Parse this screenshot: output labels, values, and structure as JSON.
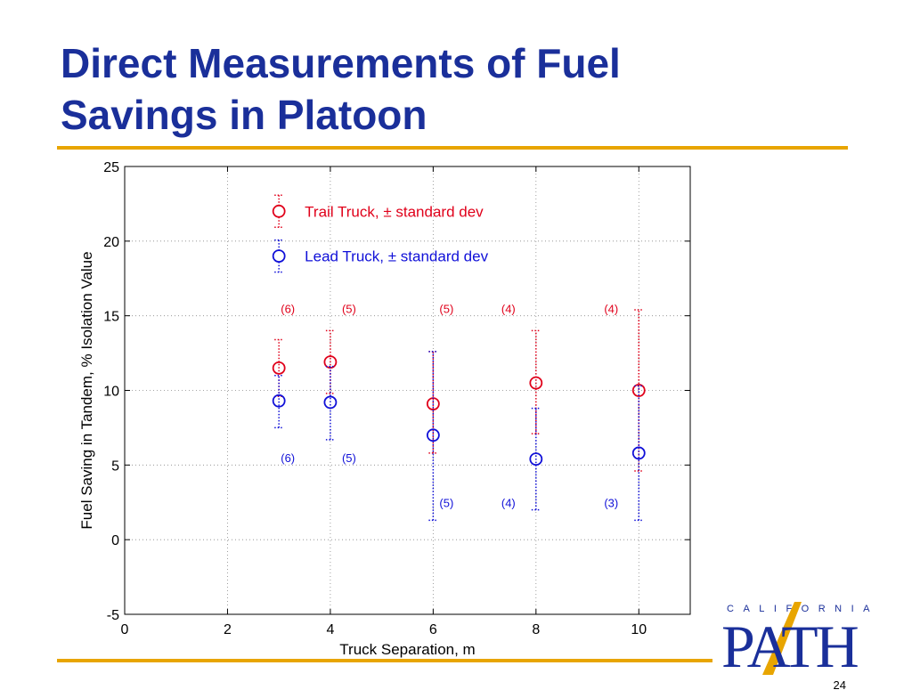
{
  "slide": {
    "title_line1": "Direct Measurements of Fuel",
    "title_line2": "Savings in Platoon",
    "page_number": "24"
  },
  "logo": {
    "top_text": "CALIFORNIA",
    "main_text": "PATH"
  },
  "colors": {
    "title": "#1a2f9a",
    "rule": "#e8a500",
    "trail": "#e0001a",
    "lead": "#1010d8"
  },
  "chart_data": {
    "type": "scatter",
    "xlabel": "Truck Separation, m",
    "ylabel": "Fuel Saving in Tandem, % Isolation Value",
    "xlim": [
      0,
      11
    ],
    "ylim": [
      -5,
      25
    ],
    "xticks": [
      0,
      2,
      4,
      6,
      8,
      10
    ],
    "yticks": [
      -5,
      0,
      5,
      10,
      15,
      20,
      25
    ],
    "grid": true,
    "legend_position": "upper-left inside",
    "series": [
      {
        "name": "Trail Truck, ± standard dev",
        "color": "#e0001a",
        "x": [
          3,
          4,
          6,
          8,
          10
        ],
        "y": [
          11.5,
          11.9,
          9.1,
          10.5,
          10.0
        ],
        "err_low": [
          9.6,
          9.8,
          5.8,
          7.1,
          4.6
        ],
        "err_high": [
          13.4,
          14.0,
          12.6,
          14.0,
          15.4
        ],
        "counts": [
          "(6)",
          "(5)",
          "(5)",
          "(4)",
          "(4)"
        ],
        "count_label_y": 15.5
      },
      {
        "name": "Lead Truck, ± standard dev",
        "color": "#1010d8",
        "x": [
          3,
          4,
          6,
          8,
          10
        ],
        "y": [
          9.3,
          9.2,
          7.0,
          5.4,
          5.8
        ],
        "err_low": [
          7.5,
          6.7,
          1.3,
          2.0,
          1.3
        ],
        "err_high": [
          11.0,
          11.6,
          12.6,
          8.8,
          10.3
        ],
        "counts": [
          "(6)",
          "(5)",
          "(5)",
          "(4)",
          "(3)"
        ],
        "count_label_y": [
          5.5,
          5.5,
          2.5,
          2.5,
          2.5
        ]
      }
    ]
  }
}
